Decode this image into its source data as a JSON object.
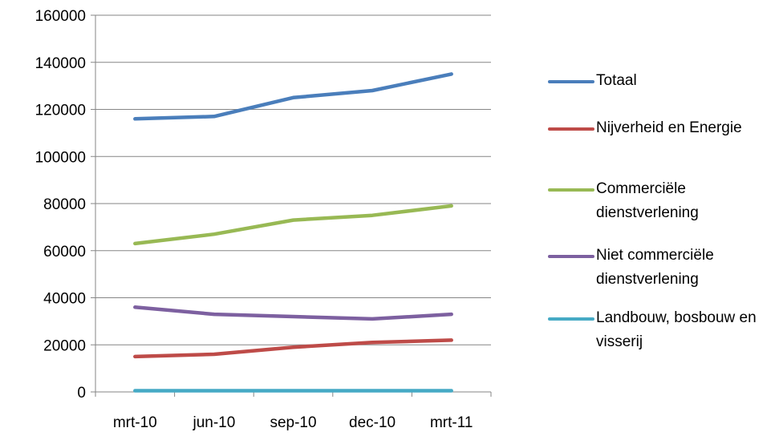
{
  "chart_data": {
    "type": "line",
    "categories": [
      "mrt-10",
      "jun-10",
      "sep-10",
      "dec-10",
      "mrt-11"
    ],
    "ylim": [
      0,
      160000
    ],
    "yticks": [
      0,
      20000,
      40000,
      60000,
      80000,
      100000,
      120000,
      140000,
      160000
    ],
    "ytick_labels": [
      "0",
      "20000",
      "40000",
      "60000",
      "80000",
      "100000",
      "120000",
      "140000",
      "160000"
    ],
    "grid": true,
    "legend_position": "right",
    "series": [
      {
        "name": "Totaal",
        "color": "#4a7ebb",
        "values": [
          116000,
          117000,
          125000,
          128000,
          135000
        ]
      },
      {
        "name": "Nijverheid en Energie",
        "color": "#be4b48",
        "values": [
          15000,
          16000,
          19000,
          21000,
          22000
        ]
      },
      {
        "name": "Commerciële dienstverlening",
        "color": "#98b954",
        "values": [
          63000,
          67000,
          73000,
          75000,
          79000
        ]
      },
      {
        "name": "Niet commerciële dienstverlening",
        "color": "#7d60a0",
        "values": [
          36000,
          33000,
          32000,
          31000,
          33000
        ]
      },
      {
        "name": "Landbouw, bosbouw en visserij",
        "color": "#46aac5",
        "values": [
          500,
          500,
          500,
          500,
          500
        ]
      }
    ]
  }
}
